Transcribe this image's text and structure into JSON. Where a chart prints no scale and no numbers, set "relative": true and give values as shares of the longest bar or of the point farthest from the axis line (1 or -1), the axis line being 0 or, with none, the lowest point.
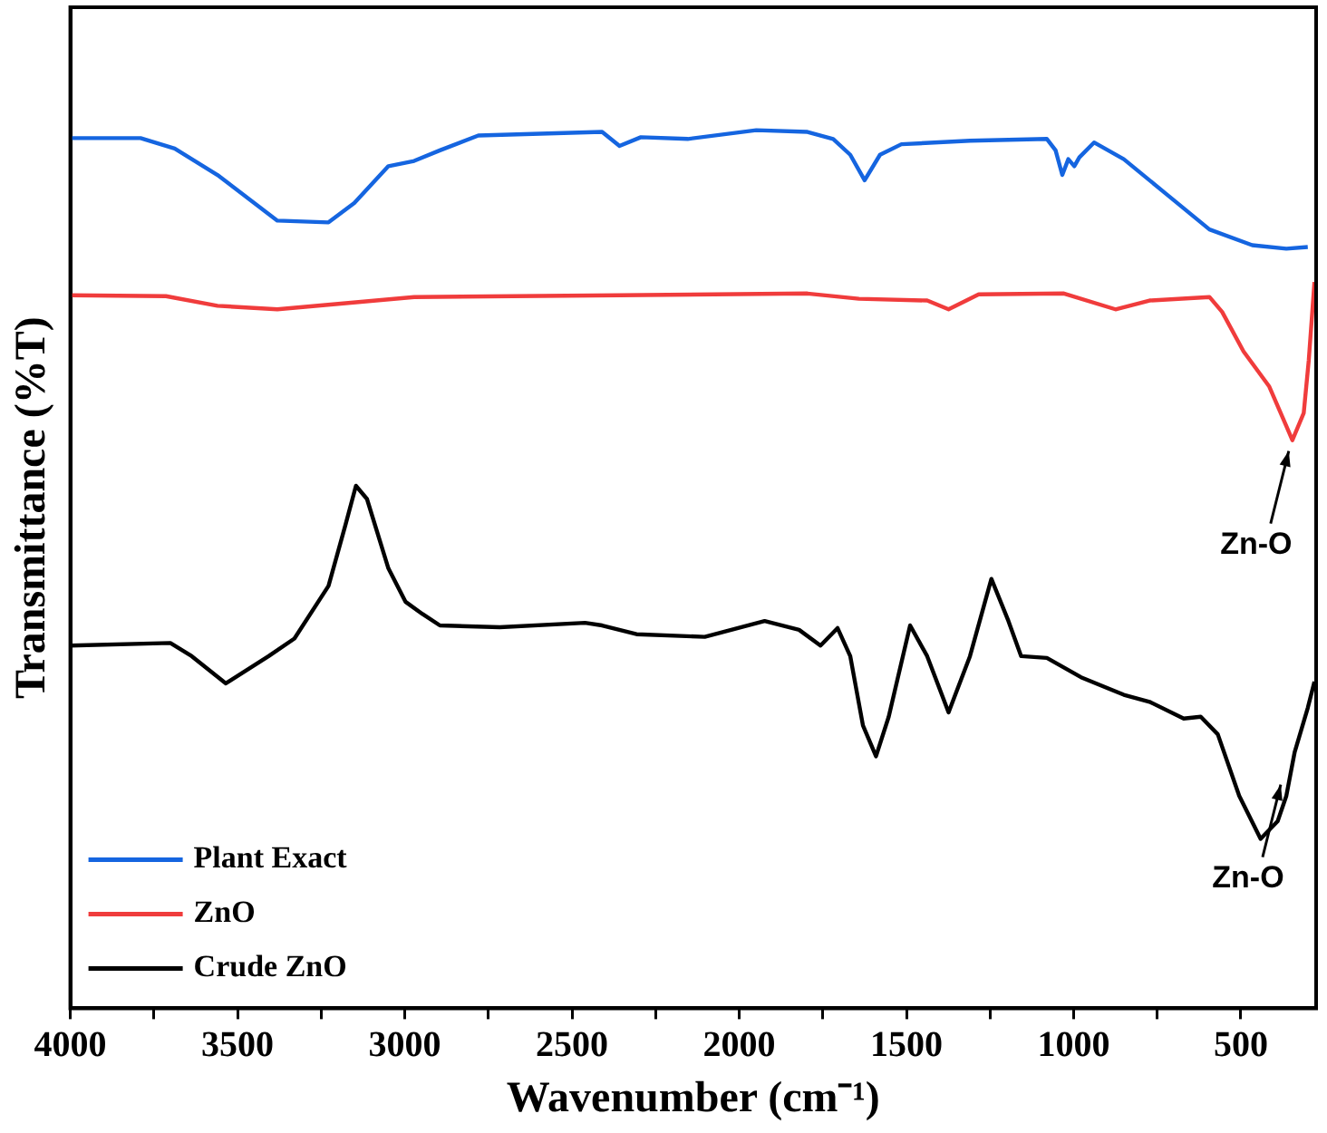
{
  "chart_data": {
    "type": "line",
    "relative": true,
    "xlabel": "Wavenumber (cm⁻¹)",
    "ylabel": "Transmittance (%T)",
    "xlim": [
      4000,
      275
    ],
    "xticks": [
      4000,
      {
        "value": 3750,
        "label": null
      },
      3500,
      {
        "value": 3250,
        "label": null
      },
      3000,
      {
        "value": 2750,
        "label": null
      },
      2500,
      {
        "value": 2250,
        "label": null
      },
      2000,
      {
        "value": 1750,
        "label": null
      },
      1500,
      {
        "value": 1250,
        "label": null
      },
      1000,
      {
        "value": 750,
        "label": null
      },
      500
    ],
    "legend": "bottom left",
    "grid": false,
    "marker": "none",
    "line_style": "solid",
    "series": [
      {
        "name": "Plant Exact",
        "color": "#1565e0",
        "x": [
          4000,
          3790,
          3688,
          3560,
          3381,
          3228,
          3151,
          3049,
          2972,
          2895,
          2780,
          2410,
          2358,
          2294,
          2154,
          1949,
          1796,
          1719,
          1668,
          1625,
          1579,
          1515,
          1310,
          1080,
          1054,
          1034,
          1016,
          998,
          983,
          939,
          850,
          722,
          594,
          466,
          364,
          300
        ],
        "values": [
          0.991,
          0.991,
          0.979,
          0.949,
          0.897,
          0.895,
          0.917,
          0.959,
          0.965,
          0.977,
          0.994,
          0.998,
          0.982,
          0.992,
          0.99,
          1.0,
          0.998,
          0.99,
          0.972,
          0.943,
          0.972,
          0.984,
          0.988,
          0.99,
          0.977,
          0.949,
          0.967,
          0.959,
          0.969,
          0.986,
          0.967,
          0.927,
          0.887,
          0.869,
          0.865,
          0.867
        ]
      },
      {
        "name": "ZnO",
        "color": "#f03c3c",
        "x": [
          4000,
          3714,
          3560,
          3381,
          2972,
          2358,
          1796,
          1642,
          1438,
          1374,
          1284,
          1029,
          875,
          773,
          594,
          556,
          492,
          415,
          364,
          346,
          312,
          297,
          280
        ],
        "values": [
          0.812,
          0.811,
          0.8,
          0.796,
          0.81,
          0.812,
          0.814,
          0.808,
          0.806,
          0.796,
          0.813,
          0.814,
          0.796,
          0.806,
          0.81,
          0.793,
          0.748,
          0.708,
          0.663,
          0.647,
          0.678,
          0.738,
          0.827
        ]
      },
      {
        "name": "Crude ZnO",
        "color": "#000000",
        "x": [
          4000,
          3701,
          3637,
          3535,
          3407,
          3330,
          3228,
          3177,
          3146,
          3113,
          3049,
          2998,
          2947,
          2895,
          2716,
          2461,
          2410,
          2307,
          2103,
          1924,
          1821,
          1757,
          1706,
          1668,
          1630,
          1591,
          1553,
          1489,
          1438,
          1374,
          1310,
          1246,
          1195,
          1157,
          1080,
          978,
          850,
          773,
          671,
          620,
          569,
          505,
          441,
          390,
          364,
          339,
          300,
          280
        ],
        "values": [
          0.413,
          0.416,
          0.401,
          0.37,
          0.401,
          0.421,
          0.481,
          0.551,
          0.595,
          0.58,
          0.501,
          0.463,
          0.449,
          0.436,
          0.434,
          0.439,
          0.436,
          0.426,
          0.423,
          0.441,
          0.431,
          0.413,
          0.433,
          0.401,
          0.322,
          0.287,
          0.332,
          0.436,
          0.401,
          0.337,
          0.401,
          0.489,
          0.441,
          0.401,
          0.399,
          0.377,
          0.357,
          0.349,
          0.33,
          0.332,
          0.312,
          0.242,
          0.193,
          0.213,
          0.242,
          0.292,
          0.342,
          0.372
        ]
      }
    ],
    "annotations": [
      {
        "text": "Zn-O",
        "x": 346,
        "y": 0.647
      },
      {
        "text": "Zn-O",
        "x": 370,
        "y": 0.267
      }
    ]
  }
}
